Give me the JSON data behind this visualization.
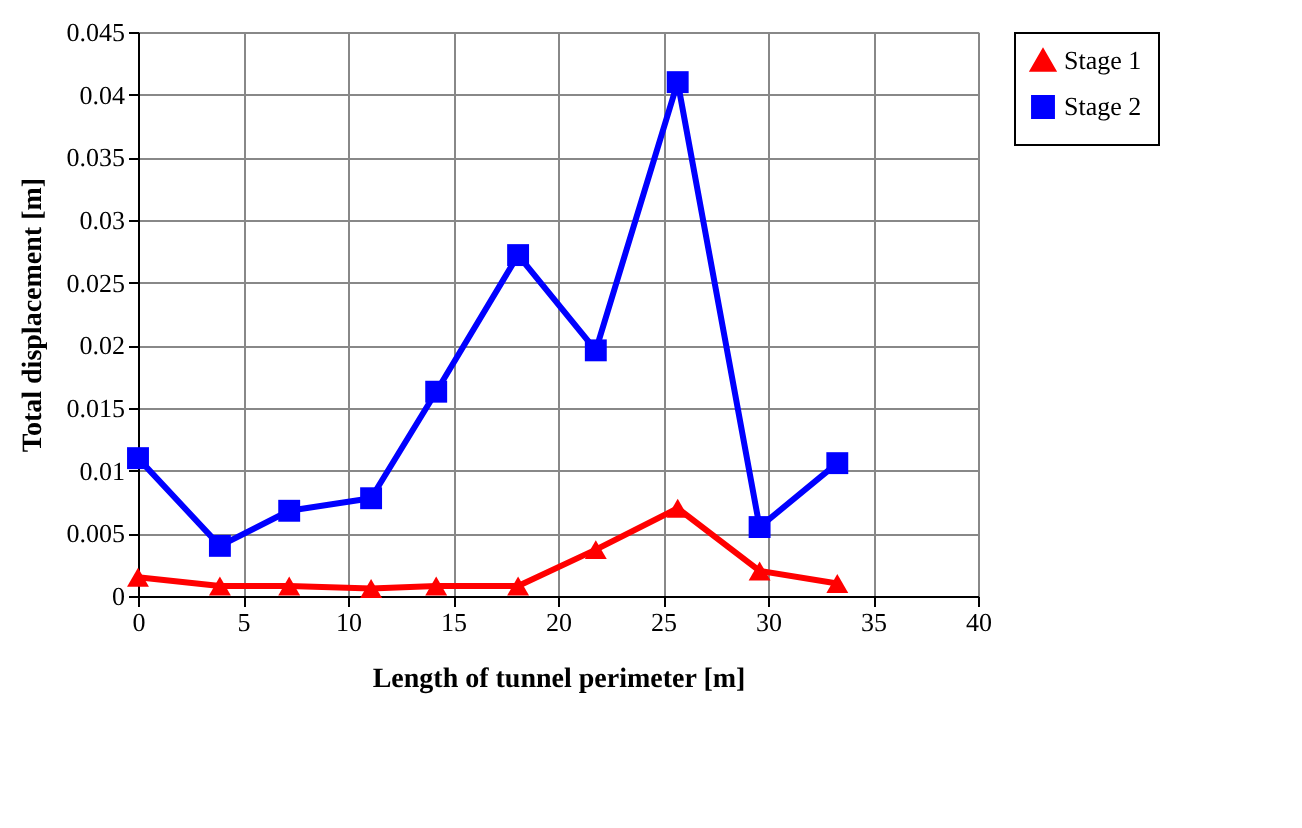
{
  "chart_data": {
    "type": "line",
    "xlabel": "Length of tunnel perimeter [m]",
    "ylabel": "Total displacement [m]",
    "x": [
      0,
      3.9,
      7.2,
      11.1,
      14.2,
      18.1,
      21.8,
      25.7,
      29.6,
      33.3
    ],
    "series": [
      {
        "name": "Stage 1",
        "color": "#ff0000",
        "marker": "triangle",
        "values": [
          0.0015,
          0.0008,
          0.0008,
          0.0006,
          0.0008,
          0.0008,
          0.0037,
          0.007,
          0.002,
          0.001
        ]
      },
      {
        "name": "Stage 2",
        "color": "#0000ff",
        "marker": "square",
        "values": [
          0.011,
          0.004,
          0.0068,
          0.0078,
          0.0163,
          0.0272,
          0.0196,
          0.041,
          0.0055,
          0.0106
        ]
      }
    ],
    "xlim": [
      0,
      40
    ],
    "xticks": [
      0,
      5,
      10,
      15,
      20,
      25,
      30,
      35,
      40
    ],
    "ylim": [
      0,
      0.045
    ],
    "yticks": [
      0,
      0.005,
      0.01,
      0.015,
      0.02,
      0.025,
      0.03,
      0.035,
      0.04,
      0.045
    ],
    "grid": true,
    "legend": "right",
    "line_style": "solid"
  }
}
